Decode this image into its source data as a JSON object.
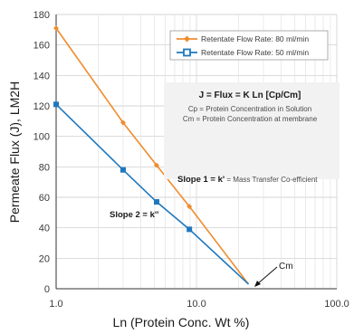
{
  "chart_data": {
    "type": "line",
    "xlabel": "Ln (Protein Conc. Wt %)",
    "ylabel": "Permeate Flux (J), LM2H",
    "x_scale": "log",
    "xlim": [
      1,
      100
    ],
    "ylim": [
      0,
      180
    ],
    "x_ticks": [
      {
        "value": 1,
        "label": "1.0"
      },
      {
        "value": 10,
        "label": "10.0"
      },
      {
        "value": 100,
        "label": "100.0"
      }
    ],
    "y_ticks": [
      0,
      20,
      40,
      60,
      80,
      100,
      120,
      140,
      160,
      180
    ],
    "grid": true,
    "legend_position": "top-right",
    "series": [
      {
        "name": "Retentate Flow Rate: 80 ml/min",
        "color": "#f08c2e",
        "marker": "diamond",
        "x": [
          1.0,
          3.0,
          5.2,
          8.9,
          23.5
        ],
        "y": [
          171,
          109,
          81,
          54,
          3
        ]
      },
      {
        "name": "Retentate Flow Rate: 50 ml/min",
        "color": "#1f78be",
        "marker": "square",
        "x": [
          1.0,
          3.0,
          5.2,
          8.9,
          23.5
        ],
        "y": [
          121,
          78,
          57,
          39,
          3
        ]
      }
    ],
    "annotations": {
      "equation": "J = Flux = K Ln [Cp/Cm]",
      "cp_def": "Cp = Protein Concentration in Solution",
      "cm_def": "Cm = Protein Concentration at membrane",
      "slope1_bold": "Slope 1 = k'",
      "slope1_rest": " = Mass Transfer Co-efficient",
      "slope2": "Slope 2 = k''",
      "cm_label": "Cm"
    }
  }
}
